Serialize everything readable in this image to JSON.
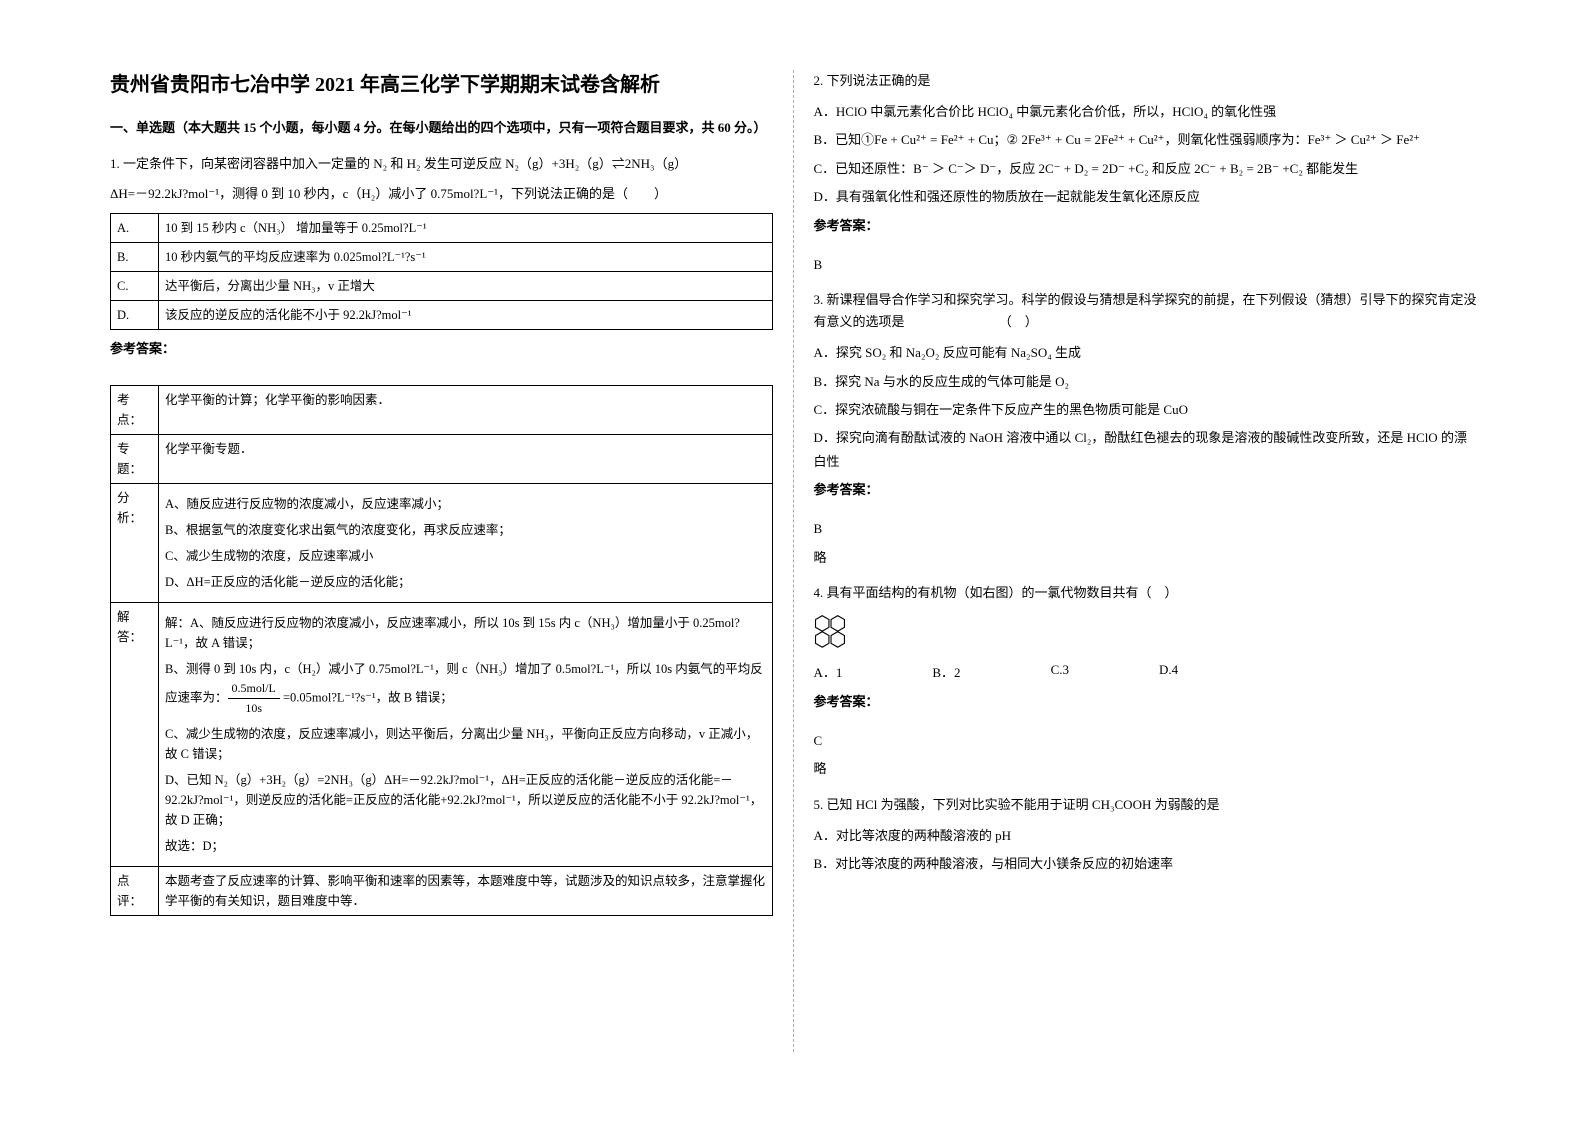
{
  "title": "贵州省贵阳市七冶中学 2021 年高三化学下学期期末试卷含解析",
  "section1_heading": "一、单选题（本大题共 15 个小题，每小题 4 分。在每小题给出的四个选项中，只有一项符合题目要求，共 60 分。）",
  "q1": {
    "text_a": "1. 一定条件下，向某密闭容器中加入一定量的 N₂ 和 H₂ 发生可逆反应 N₂（g）+3H₂（g）⇌2NH₃（g）",
    "text_b": "ΔH=－92.2kJ?mol⁻¹，测得 0 到 10 秒内，c（H₂）减小了 0.75mol?L⁻¹，下列说法正确的是（　　）",
    "options": [
      {
        "label": "A.",
        "text": "10 到 15 秒内 c（NH₃） 增加量等于 0.25mol?L⁻¹"
      },
      {
        "label": "B.",
        "text": "10 秒内氨气的平均反应速率为 0.025mol?L⁻¹?s⁻¹"
      },
      {
        "label": "C.",
        "text": "达平衡后，分离出少量 NH₃，v 正增大"
      },
      {
        "label": "D.",
        "text": "该反应的逆反应的活化能不小于 92.2kJ?mol⁻¹"
      }
    ],
    "answer_label": "参考答案：",
    "analysis_rows": [
      {
        "label": "考点：",
        "text": "化学平衡的计算；化学平衡的影响因素．"
      },
      {
        "label": "专题：",
        "text": "化学平衡专题．"
      },
      {
        "label": "分析：",
        "text": "A、随反应进行反应物的浓度减小，反应速率减小；\n\nB、根据氢气的浓度变化求出氨气的浓度变化，再求反应速率；\n\nC、减少生成物的浓度，反应速率减小\n\nD、ΔH=正反应的活化能－逆反应的活化能；"
      },
      {
        "label": "解答：",
        "text": "解：A、随反应进行反应物的浓度减小，反应速率减小，所以 10s 到 15s 内 c（NH₃）增加量小于 0.25mol?L⁻¹，故 A 错误；\n\nB、测得 0 到 10s 内，c（H₂）减小了 0.75mol?L⁻¹，则 c（NH₃）增加了 0.5mol?L⁻¹，所以 10s 内氨气的平均反应速率为：[FRAC] =0.05mol?L⁻¹?s⁻¹，故 B 错误；\n\nC、减少生成物的浓度，反应速率减小，则达平衡后，分离出少量 NH₃，平衡向正反应方向移动，v 正减小，故 C 错误；\n\nD、已知 N₂（g）+3H₂（g）=2NH₃（g）ΔH=－92.2kJ?mol⁻¹，ΔH=正反应的活化能－逆反应的活化能=－92.2kJ?mol⁻¹，则逆反应的活化能=正反应的活化能+92.2kJ?mol⁻¹，所以逆反应的活化能不小于 92.2kJ?mol⁻¹，故 D 正确；\n\n故选：D；"
      },
      {
        "label": "点评：",
        "text": "本题考查了反应速率的计算、影响平衡和速率的因素等，本题难度中等，试题涉及的知识点较多，注意掌握化学平衡的有关知识，题目难度中等．"
      }
    ],
    "frac_num": "0.5mol/L",
    "frac_den": "10s"
  },
  "q2": {
    "stem": "2. 下列说法正确的是",
    "optA": "A．HClO 中氯元素化合价比 HClO₄ 中氯元素化合价低，所以，HClO₄ 的氧化性强",
    "optB": "B．已知①Fe + Cu²⁺ = Fe²⁺ + Cu；② 2Fe³⁺ + Cu = 2Fe²⁺ + Cu²⁺，则氧化性强弱顺序为：Fe³⁺ ＞ Cu²⁺ ＞ Fe²⁺",
    "optC": "C．已知还原性：B⁻ ＞ C⁻＞ D⁻，反应 2C⁻ + D₂ = 2D⁻ +C₂ 和反应 2C⁻ + B₂ = 2B⁻ +C₂ 都能发生",
    "optD": "D．具有强氧化性和强还原性的物质放在一起就能发生氧化还原反应",
    "answer_label": "参考答案：",
    "answer": "B"
  },
  "q3": {
    "stem": "3. 新课程倡导合作学习和探究学习。科学的假设与猜想是科学探究的前提，在下列假设（猜想）引导下的探究肯定没有意义的选项是　　　　　　　 （　）",
    "optA": "A．探究 SO₂ 和 Na₂O₂ 反应可能有 Na₂SO₄ 生成",
    "optB": "B．探究 Na 与水的反应生成的气体可能是 O₂",
    "optC": "C．探究浓硫酸与铜在一定条件下反应产生的黑色物质可能是 CuO",
    "optD": "D．探究向滴有酚酞试液的 NaOH 溶液中通以 Cl₂，酚酞红色褪去的现象是溶液的酸碱性改变所致，还是 HClO 的漂白性",
    "answer_label": "参考答案：",
    "answer": "B",
    "note": "略"
  },
  "q4": {
    "stem": "4. 具有平面结构的有机物（如右图）的一氯代物数目共有（　）",
    "optA": "A．1",
    "optB": "B．2",
    "optC": "C.3",
    "optD": "D.4",
    "answer_label": "参考答案：",
    "answer": "C",
    "note": "略"
  },
  "q5": {
    "stem": "5. 已知 HCl 为强酸，下列对比实验不能用于证明 CH₃COOH 为弱酸的是",
    "optA": "A．对比等浓度的两种酸溶液的 pH",
    "optB": "B．对比等浓度的两种酸溶液，与相同大小镁条反应的初始速率"
  }
}
